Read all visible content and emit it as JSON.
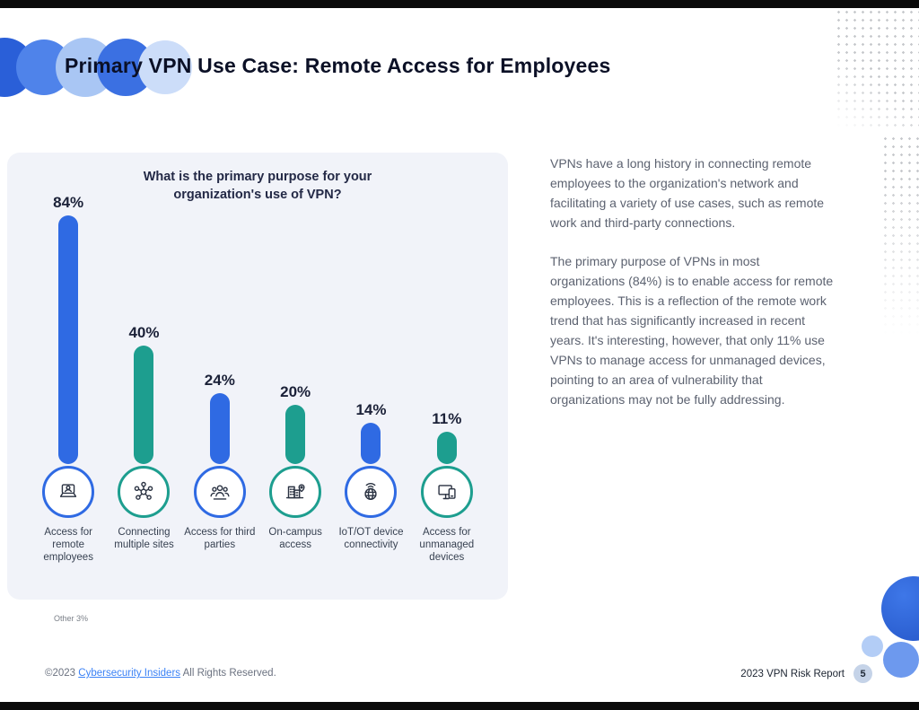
{
  "page": {
    "title": "Primary VPN Use Case: Remote Access for Employees",
    "footer": {
      "copyright_prefix": "©2023",
      "copyright_link": "Cybersecurity Insiders",
      "copyright_suffix": "All Rights Reserved.",
      "report_name": "2023 VPN Risk Report",
      "page_number": "5"
    }
  },
  "body_text": {
    "paragraph_1": "VPNs have a long history in connecting remote employees to the organization's network and facilitating a variety of use cases, such as remote work and third-party connections.",
    "paragraph_2": "The primary purpose of VPNs in most organizations (84%) is to enable access for remote employees. This is a reflection of the remote work trend that has significantly increased in recent years. It's interesting, however, that only 11% use VPNs to manage access for unmanaged devices, pointing to an area of vulnerability that organizations may not be fully addressing."
  },
  "chart_data": {
    "type": "bar",
    "title": "What is the primary purpose for your organization's use of VPN?",
    "categories": [
      "Access for remote employees",
      "Connecting multiple sites",
      "Access for third parties",
      "On-campus access",
      "IoT/OT device connectivity",
      "Access for unmanaged devices"
    ],
    "values": [
      84,
      40,
      24,
      20,
      14,
      11
    ],
    "value_labels": [
      "84%",
      "40%",
      "24%",
      "20%",
      "14%",
      "11%"
    ],
    "unit": "%",
    "footnote": "Other 3%",
    "colors": {
      "blue": "#2f6ae3",
      "teal": "#1d9e8f"
    },
    "bar_color_sequence": [
      "blue",
      "teal",
      "blue",
      "teal",
      "blue",
      "teal"
    ],
    "icons": [
      "remote-worker-icon",
      "network-sites-icon",
      "people-group-icon",
      "campus-buildings-icon",
      "iot-globe-icon",
      "devices-icon"
    ],
    "ylim": [
      0,
      90
    ],
    "grid": false,
    "legend": "none"
  }
}
